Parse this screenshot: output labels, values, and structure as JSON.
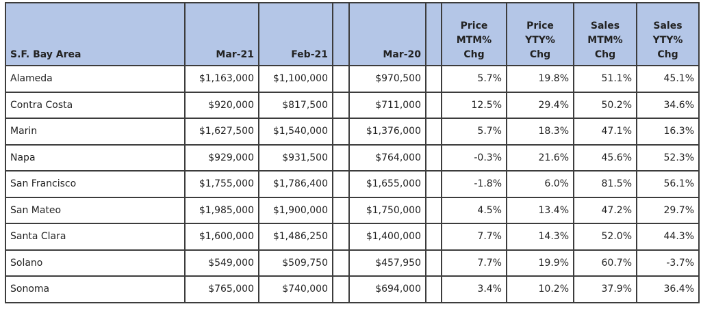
{
  "table": {
    "header": [
      "S.F. Bay Area",
      "Mar-21",
      "Feb-21",
      "Mar-20",
      [
        "Price",
        "MTM%",
        "Chg"
      ],
      [
        "Price",
        "YTY%",
        "Chg"
      ],
      [
        "Sales",
        "MTM%",
        "Chg"
      ],
      [
        "Sales",
        "YTY%",
        "Chg"
      ]
    ],
    "rows": [
      [
        "Alameda",
        "$1,163,000",
        "$1,100,000",
        "$970,500",
        "5.7%",
        "19.8%",
        "51.1%",
        "45.1%"
      ],
      [
        "Contra Costa",
        "$920,000",
        "$817,500",
        "$711,000",
        "12.5%",
        "29.4%",
        "50.2%",
        "34.6%"
      ],
      [
        "Marin",
        "$1,627,500",
        "$1,540,000",
        "$1,376,000",
        "5.7%",
        "18.3%",
        "47.1%",
        "16.3%"
      ],
      [
        "Napa",
        "$929,000",
        "$931,500",
        "$764,000",
        "-0.3%",
        "21.6%",
        "45.6%",
        "52.3%"
      ],
      [
        "San Francisco",
        "$1,755,000",
        "$1,786,400",
        "$1,655,000",
        "-1.8%",
        "6.0%",
        "81.5%",
        "56.1%"
      ],
      [
        "San Mateo",
        "$1,985,000",
        "$1,900,000",
        "$1,750,000",
        "4.5%",
        "13.4%",
        "47.2%",
        "29.7%"
      ],
      [
        "Santa Clara",
        "$1,600,000",
        "$1,486,250",
        "$1,400,000",
        "7.7%",
        "14.3%",
        "52.0%",
        "44.3%"
      ],
      [
        "Solano",
        "$549,000",
        "$509,750",
        "$457,950",
        "7.7%",
        "19.9%",
        "60.7%",
        "-3.7%"
      ],
      [
        "Sonoma",
        "$765,000",
        "$740,000",
        "$694,000",
        "3.4%",
        "10.2%",
        "37.9%",
        "36.4%"
      ]
    ]
  }
}
